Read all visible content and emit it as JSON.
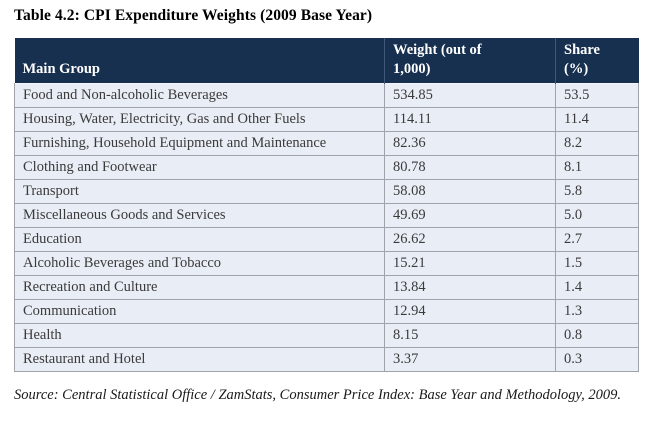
{
  "title": "Table 4.2: CPI Expenditure Weights (2009 Base Year)",
  "table": {
    "columns": [
      "Main Group",
      "Weight (out of\n1,000)",
      "Share\n(%)"
    ],
    "rows": [
      {
        "group": "Food and Non-alcoholic Beverages",
        "weight": "534.85",
        "share": "53.5"
      },
      {
        "group": "Housing, Water, Electricity, Gas and Other Fuels",
        "weight": "114.11",
        "share": "11.4"
      },
      {
        "group": "Furnishing, Household Equipment and Maintenance",
        "weight": "82.36",
        "share": "8.2"
      },
      {
        "group": "Clothing and Footwear",
        "weight": "80.78",
        "share": "8.1"
      },
      {
        "group": "Transport",
        "weight": "58.08",
        "share": "5.8"
      },
      {
        "group": "Miscellaneous Goods and Services",
        "weight": "49.69",
        "share": "5.0"
      },
      {
        "group": "Education",
        "weight": "26.62",
        "share": "2.7"
      },
      {
        "group": "Alcoholic Beverages and Tobacco",
        "weight": "15.21",
        "share": "1.5"
      },
      {
        "group": "Recreation and Culture",
        "weight": "13.84",
        "share": "1.4"
      },
      {
        "group": "Communication",
        "weight": "12.94",
        "share": "1.3"
      },
      {
        "group": "Health",
        "weight": "8.15",
        "share": "0.8"
      },
      {
        "group": "Restaurant and Hotel",
        "weight": "3.37",
        "share": "0.3"
      }
    ]
  },
  "source": "Source: Central Statistical Office / ZamStats, Consumer Price Index: Base Year and Methodology, 2009.",
  "colors": {
    "header_bg": "#17304f",
    "header_text": "#ffffff",
    "row_bg": "#e9eef6",
    "border": "#a0a4aa"
  }
}
